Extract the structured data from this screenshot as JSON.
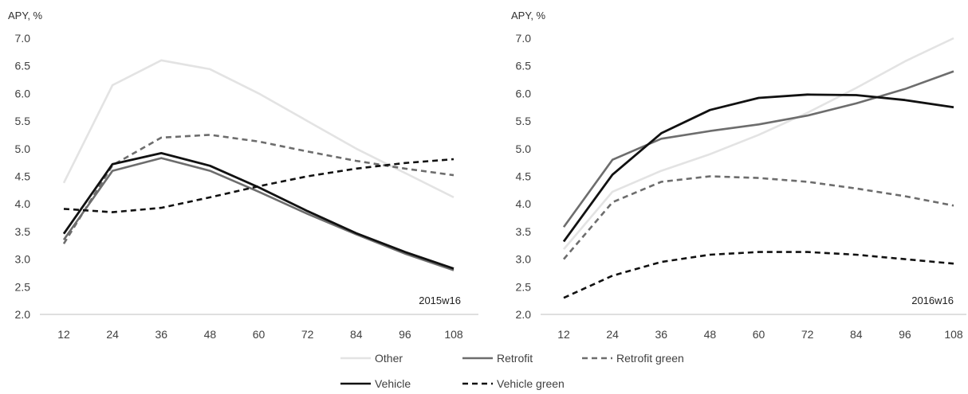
{
  "chart_data": [
    {
      "type": "line",
      "ylabel": "APY, %",
      "annotation": "2015w16",
      "ylim": [
        2.0,
        7.0
      ],
      "yticks": [
        "2.0",
        "2.5",
        "3.0",
        "3.5",
        "4.0",
        "4.5",
        "5.0",
        "5.5",
        "6.0",
        "6.5",
        "7.0"
      ],
      "x": [
        12,
        24,
        36,
        48,
        60,
        72,
        84,
        96,
        108
      ],
      "xticks": [
        "12",
        "24",
        "36",
        "48",
        "60",
        "72",
        "84",
        "96",
        "108"
      ],
      "series": [
        {
          "name": "Other",
          "values": [
            4.38,
            6.15,
            6.6,
            6.44,
            6.0,
            5.5,
            5.0,
            4.56,
            4.12
          ]
        },
        {
          "name": "Retrofit",
          "values": [
            3.35,
            4.6,
            4.83,
            4.6,
            4.22,
            3.82,
            3.45,
            3.1,
            2.8
          ]
        },
        {
          "name": "Retrofit green",
          "values": [
            3.28,
            4.7,
            5.2,
            5.25,
            5.13,
            4.95,
            4.78,
            4.64,
            4.52
          ]
        },
        {
          "name": "Vehicle",
          "values": [
            3.46,
            4.72,
            4.92,
            4.69,
            4.3,
            3.87,
            3.47,
            3.13,
            2.83
          ]
        },
        {
          "name": "Vehicle green",
          "values": [
            3.91,
            3.85,
            3.93,
            4.12,
            4.32,
            4.5,
            4.64,
            4.74,
            4.81
          ]
        }
      ]
    },
    {
      "type": "line",
      "ylabel": "APY, %",
      "annotation": "2016w16",
      "ylim": [
        2.0,
        7.0
      ],
      "yticks": [
        "2.0",
        "2.5",
        "3.0",
        "3.5",
        "4.0",
        "4.5",
        "5.0",
        "5.5",
        "6.0",
        "6.5",
        "7.0"
      ],
      "x": [
        12,
        24,
        36,
        48,
        60,
        72,
        84,
        96,
        108
      ],
      "xticks": [
        "12",
        "24",
        "36",
        "48",
        "60",
        "72",
        "84",
        "96",
        "108"
      ],
      "series": [
        {
          "name": "Other",
          "values": [
            3.18,
            4.22,
            4.6,
            4.9,
            5.25,
            5.65,
            6.1,
            6.58,
            7.02
          ]
        },
        {
          "name": "Retrofit",
          "values": [
            3.58,
            4.8,
            5.18,
            5.32,
            5.44,
            5.6,
            5.82,
            6.08,
            6.4
          ]
        },
        {
          "name": "Retrofit green",
          "values": [
            3.0,
            4.03,
            4.4,
            4.5,
            4.47,
            4.4,
            4.28,
            4.14,
            3.97
          ]
        },
        {
          "name": "Vehicle",
          "values": [
            3.32,
            4.53,
            5.28,
            5.7,
            5.92,
            5.98,
            5.97,
            5.88,
            5.75
          ]
        },
        {
          "name": "Vehicle green",
          "values": [
            2.3,
            2.7,
            2.95,
            3.08,
            3.13,
            3.13,
            3.08,
            3.0,
            2.92
          ]
        }
      ]
    }
  ],
  "legend": {
    "placement": "bottom",
    "items": [
      {
        "label": "Other",
        "color": "#e3e3e3",
        "dashed": false
      },
      {
        "label": "Retrofit",
        "color": "#6d6d6d",
        "dashed": false
      },
      {
        "label": "Retrofit green",
        "color": "#6d6d6d",
        "dashed": true
      },
      {
        "label": "Vehicle",
        "color": "#111111",
        "dashed": false
      },
      {
        "label": "Vehicle green",
        "color": "#111111",
        "dashed": true
      }
    ]
  },
  "colors": {
    "Other": "#e3e3e3",
    "Retrofit": "#6d6d6d",
    "Retrofit green": "#6d6d6d",
    "Vehicle": "#111111",
    "Vehicle green": "#111111",
    "axis": "#bfbfbf"
  }
}
